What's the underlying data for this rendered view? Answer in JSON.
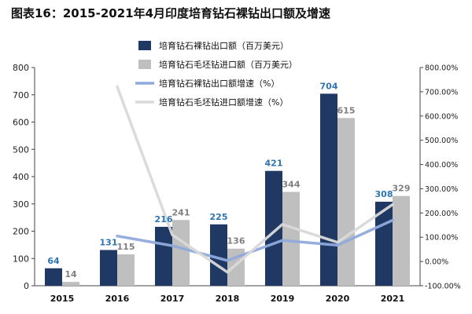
{
  "title": "图表16：2015-2021年4月印度培育钻石裸钻出口额及增速",
  "chart_data": {
    "type": "bar",
    "categories": [
      "2015",
      "2016",
      "2017",
      "2018",
      "2019",
      "2020",
      "2021"
    ],
    "series": [
      {
        "name": "培育钻石裸钻出口额（百万美元）",
        "kind": "bar",
        "axis": "left",
        "color": "#1f3864",
        "label_color": "#2e75b6",
        "values": [
          64,
          131,
          216,
          225,
          421,
          704,
          308
        ],
        "labels": [
          "64",
          "131",
          "216",
          "225",
          "421",
          "704",
          "308"
        ]
      },
      {
        "name": "培育钻石毛坯钻进口额（百万美元）",
        "kind": "bar",
        "axis": "left",
        "color": "#bfbfbf",
        "label_color": "#808080",
        "values": [
          14,
          115,
          241,
          136,
          344,
          615,
          329
        ],
        "labels": [
          "14",
          "115",
          "241",
          "136",
          "344",
          "615",
          "329"
        ]
      },
      {
        "name": "培育钻石裸钻出口额增速（%）",
        "kind": "line",
        "axis": "right",
        "color": "#8faadc",
        "values": [
          null,
          105,
          65,
          4,
          87,
          67,
          170
        ]
      },
      {
        "name": "培育钻石毛坯钻进口额增速（%）",
        "kind": "line",
        "axis": "right",
        "color": "#d9d9d9",
        "values": [
          null,
          721,
          110,
          -44,
          153,
          79,
          235
        ]
      }
    ],
    "y_left": {
      "min": 0,
      "max": 800,
      "ticks": [
        "0",
        "100",
        "200",
        "300",
        "400",
        "500",
        "600",
        "700",
        "800"
      ]
    },
    "y_right": {
      "min": -100,
      "max": 800,
      "ticks": [
        "-100.00%",
        "0.00%",
        "100.00%",
        "200.00%",
        "300.00%",
        "400.00%",
        "500.00%",
        "600.00%",
        "700.00%",
        "800.00%"
      ]
    },
    "legend_position": "top-center",
    "grid": false
  }
}
